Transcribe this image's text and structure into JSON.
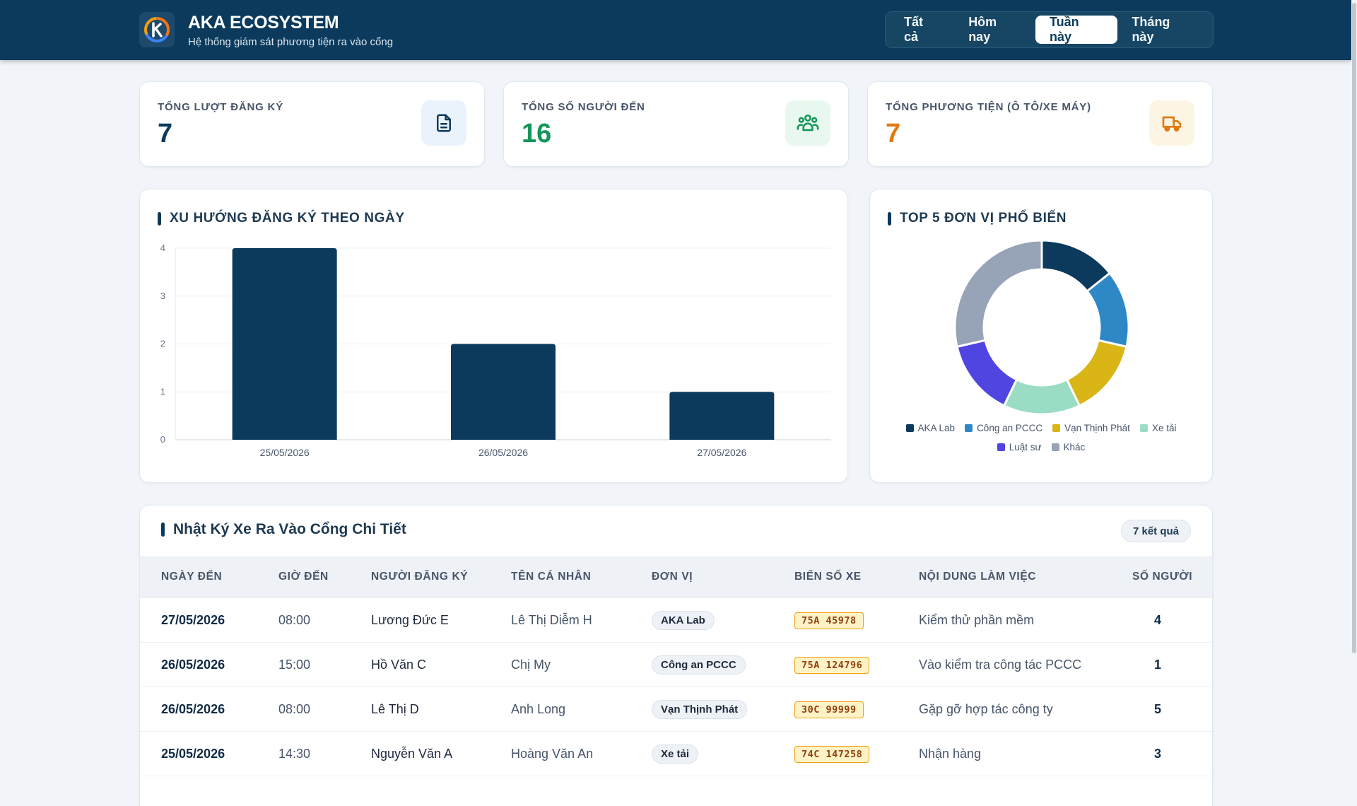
{
  "header": {
    "title": "AKA ECOSYSTEM",
    "subtitle": "Hệ thống giám sát phương tiện ra vào cổng",
    "filters": [
      {
        "label": "Tất cả",
        "active": false
      },
      {
        "label": "Hôm nay",
        "active": false
      },
      {
        "label": "Tuần này",
        "active": true
      },
      {
        "label": "Tháng này",
        "active": false
      }
    ]
  },
  "stats": [
    {
      "label": "TỔNG LƯỢT ĐĂNG KÝ",
      "value": "7",
      "color": "#0b3a5c",
      "icon": "document-icon",
      "icon_bg": "#eaf3fb"
    },
    {
      "label": "TỔNG SỐ NGƯỜI ĐẾN",
      "value": "16",
      "color": "#15965a",
      "icon": "users-icon",
      "icon_bg": "#e8f8ef"
    },
    {
      "label": "TỔNG PHƯƠNG TIỆN (Ô TÔ/XE MÁY)",
      "value": "7",
      "color": "#e07a10",
      "icon": "truck-icon",
      "icon_bg": "#fdf5e4"
    }
  ],
  "trend": {
    "title": "XU HƯỚNG ĐĂNG KÝ THEO NGÀY",
    "chart_data": {
      "type": "bar",
      "categories": [
        "25/05/2026",
        "26/05/2026",
        "27/05/2026"
      ],
      "values": [
        4,
        2,
        1
      ],
      "ylim": [
        0,
        4
      ],
      "yticks": [
        "0",
        "1",
        "2",
        "3",
        "4"
      ],
      "color": "#0b3a5c",
      "grid": true
    }
  },
  "top_units": {
    "title": "TOP 5 ĐƠN VỊ PHỔ BIẾN",
    "chart_data": {
      "type": "pie",
      "donut": true,
      "labels": [
        "AKA Lab",
        "Công an PCCC",
        "Vạn Thịnh Phát",
        "Xe tải",
        "Luật sư",
        "Khác"
      ],
      "values": [
        1,
        1,
        1,
        1,
        1,
        2
      ],
      "colors": [
        "#0b3a5c",
        "#2f88c6",
        "#dab516",
        "#9adcc4",
        "#5145e2",
        "#97a3b6"
      ],
      "legend_position": "bottom"
    }
  },
  "log": {
    "title": "Nhật Ký Xe Ra Vào Cổng Chi Tiết",
    "count_label": "7 kết quả",
    "columns": [
      "NGÀY ĐẾN",
      "GIỜ ĐẾN",
      "NGƯỜI ĐĂNG KÝ",
      "TÊN CÁ NHÂN",
      "ĐƠN VỊ",
      "BIỂN SỐ XE",
      "NỘI DUNG LÀM VIỆC",
      "SỐ NGƯỜI"
    ],
    "rows": [
      {
        "date": "27/05/2026",
        "time": "08:00",
        "registrant": "Lương Đức E",
        "person": "Lê Thị Diễm H",
        "unit": "AKA Lab",
        "plate": "75A 45978",
        "purpose": "Kiểm thử phần mềm",
        "count": "4"
      },
      {
        "date": "26/05/2026",
        "time": "15:00",
        "registrant": "Hồ Văn C",
        "person": "Chị My",
        "unit": "Công an PCCC",
        "plate": "75A 124796",
        "purpose": "Vào kiểm tra công tác PCCC",
        "count": "1"
      },
      {
        "date": "26/05/2026",
        "time": "08:00",
        "registrant": "Lê Thị D",
        "person": "Anh Long",
        "unit": "Vạn Thịnh Phát",
        "plate": "30C 99999",
        "purpose": "Gặp gỡ hợp tác công ty",
        "count": "5"
      },
      {
        "date": "25/05/2026",
        "time": "14:30",
        "registrant": "Nguyễn Văn A",
        "person": "Hoàng Văn An",
        "unit": "Xe tải",
        "plate": "74C 147258",
        "purpose": "Nhận hàng",
        "count": "3"
      }
    ]
  }
}
